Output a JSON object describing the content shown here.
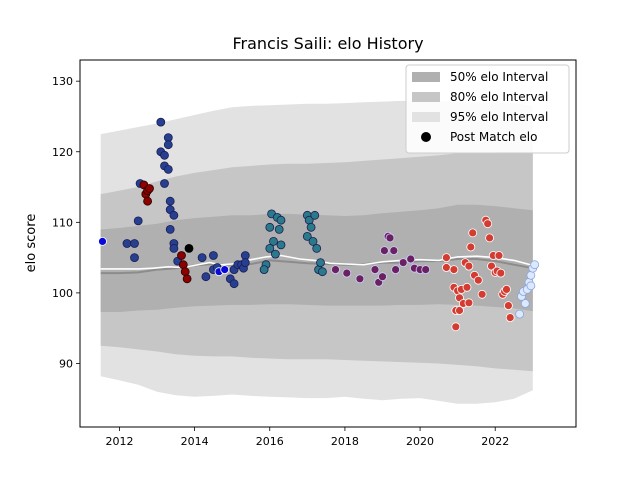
{
  "chart_data": {
    "type": "scatter",
    "title": "Francis Saili: elo History",
    "xlabel": "",
    "ylabel": "elo score",
    "xlim": [
      2010.95,
      2024.15
    ],
    "ylim": [
      81,
      133
    ],
    "x_ticks": [
      2012,
      2014,
      2016,
      2018,
      2020,
      2022
    ],
    "y_ticks": [
      90,
      100,
      110,
      120,
      130
    ],
    "grid": false,
    "legend": {
      "placement": "top-right",
      "entries": [
        {
          "label": "50% elo Interval",
          "color": "#b0b0b0"
        },
        {
          "label": "80% elo Interval",
          "color": "#c6c6c6"
        },
        {
          "label": "95% elo Interval",
          "color": "#e2e2e2"
        },
        {
          "label": "Post Match elo",
          "color": "#000000"
        }
      ]
    },
    "bands": {
      "x": [
        2011.5,
        2012.0,
        2012.5,
        2013.0,
        2013.5,
        2014.0,
        2014.5,
        2015.0,
        2015.5,
        2016.0,
        2016.5,
        2017.0,
        2017.5,
        2018.0,
        2018.5,
        2019.0,
        2019.5,
        2020.0,
        2020.5,
        2021.0,
        2021.5,
        2022.0,
        2022.5,
        2023.0
      ],
      "median": [
        102.8,
        102.8,
        102.9,
        103.3,
        103.5,
        103.9,
        104.1,
        104.0,
        104.1,
        104.6,
        104.4,
        104.2,
        104.1,
        104.0,
        104.1,
        104.3,
        104.3,
        104.5,
        104.5,
        104.8,
        104.8,
        104.5,
        104.0,
        103.5
      ],
      "q50": {
        "lower": [
          97.3,
          97.3,
          97.5,
          97.6,
          97.9,
          98.1,
          98.2,
          98.3,
          98.3,
          98.4,
          98.4,
          98.3,
          98.2,
          98.2,
          98.2,
          98.2,
          98.3,
          98.3,
          98.4,
          98.3,
          98.2,
          98.0,
          97.8,
          97.4
        ],
        "upper": [
          109.0,
          109.2,
          109.5,
          109.8,
          110.3,
          110.6,
          110.8,
          111.0,
          111.0,
          111.2,
          111.2,
          111.1,
          111.0,
          110.9,
          111.0,
          111.3,
          111.5,
          111.7,
          112.0,
          112.5,
          112.5,
          112.3,
          112.0,
          111.7
        ]
      },
      "q80": {
        "lower": [
          92.5,
          92.3,
          92.0,
          91.7,
          91.3,
          91.1,
          91.0,
          91.0,
          90.8,
          90.7,
          90.6,
          90.6,
          90.6,
          90.5,
          90.4,
          90.3,
          90.2,
          90.1,
          90.0,
          89.8,
          89.6,
          89.3,
          89.1,
          88.9
        ],
        "upper": [
          114.0,
          114.5,
          115.0,
          115.8,
          116.5,
          117.0,
          117.4,
          117.8,
          118.0,
          118.2,
          118.3,
          118.3,
          118.4,
          118.5,
          118.7,
          118.9,
          119.1,
          119.3,
          119.5,
          119.8,
          119.9,
          119.9,
          120.0,
          120.0
        ]
      },
      "q95": {
        "lower": [
          88.2,
          87.6,
          87.0,
          86.0,
          85.5,
          85.3,
          85.4,
          85.6,
          85.4,
          85.3,
          85.2,
          85.1,
          85.1,
          85.3,
          85.0,
          84.8,
          85.0,
          85.1,
          84.7,
          84.3,
          84.3,
          84.5,
          85.0,
          86.2
        ],
        "upper": [
          122.5,
          123.0,
          123.5,
          124.0,
          124.6,
          125.2,
          125.8,
          126.3,
          126.5,
          126.6,
          126.7,
          126.8,
          126.8,
          126.9,
          127.0,
          127.1,
          127.2,
          127.2,
          127.2,
          127.1,
          127.0,
          127.0,
          126.9,
          126.5
        ]
      },
      "running_elo": {
        "x": [
          2011.5,
          2012.5,
          2012.9,
          2013.3,
          2013.7,
          2014.0,
          2014.4,
          2014.7,
          2015.0,
          2015.5,
          2015.9,
          2016.3,
          2016.8,
          2017.2,
          2017.6,
          2018.0,
          2018.5,
          2019.0,
          2019.5,
          2020.0,
          2020.5,
          2021.0,
          2021.5,
          2022.0,
          2022.5,
          2023.0
        ],
        "y": [
          103.4,
          103.4,
          103.5,
          103.7,
          103.6,
          103.9,
          104.3,
          104.0,
          104.1,
          104.7,
          105.1,
          105.3,
          104.8,
          104.6,
          104.2,
          104.1,
          104.0,
          104.4,
          104.6,
          104.7,
          104.6,
          105.1,
          105.2,
          105.0,
          104.6,
          103.9
        ]
      }
    },
    "series": [
      {
        "fill": "#0a0ad8",
        "edge": "#ffffff",
        "points": [
          [
            2011.55,
            107.3
          ]
        ]
      },
      {
        "fill": "#26408f",
        "edge": "#1b1b55",
        "points": [
          [
            2012.2,
            107.0
          ],
          [
            2012.4,
            105.0
          ],
          [
            2012.4,
            107.0
          ],
          [
            2012.5,
            110.2
          ],
          [
            2012.55,
            115.5
          ],
          [
            2013.1,
            124.2
          ],
          [
            2013.1,
            120.0
          ],
          [
            2013.2,
            119.5
          ],
          [
            2013.2,
            118.0
          ],
          [
            2013.2,
            115.5
          ],
          [
            2013.3,
            122.0
          ],
          [
            2013.3,
            121.0
          ],
          [
            2013.3,
            117.5
          ],
          [
            2013.35,
            113.0
          ],
          [
            2013.35,
            111.8
          ],
          [
            2013.35,
            109.0
          ],
          [
            2013.45,
            111.0
          ],
          [
            2013.45,
            107.0
          ],
          [
            2013.45,
            106.3
          ],
          [
            2013.55,
            104.5
          ],
          [
            2014.2,
            105.0
          ],
          [
            2014.3,
            102.3
          ],
          [
            2014.5,
            105.3
          ],
          [
            2014.5,
            103.3
          ],
          [
            2014.6,
            103.6
          ],
          [
            2014.95,
            102.0
          ],
          [
            2015.05,
            103.3
          ],
          [
            2015.05,
            101.3
          ],
          [
            2015.15,
            104.0
          ],
          [
            2015.25,
            104.0
          ],
          [
            2015.3,
            103.5
          ],
          [
            2015.35,
            105.3
          ],
          [
            2015.35,
            104.3
          ]
        ]
      },
      {
        "fill": "#8b0000",
        "edge": "#2a0000",
        "points": [
          [
            2012.65,
            115.3
          ],
          [
            2012.7,
            114.0
          ],
          [
            2012.75,
            113.0
          ],
          [
            2012.75,
            114.5
          ],
          [
            2012.8,
            114.8
          ],
          [
            2013.65,
            105.3
          ],
          [
            2013.7,
            104.0
          ],
          [
            2013.75,
            103.0
          ],
          [
            2013.8,
            102.0
          ]
        ]
      },
      {
        "fill": "#000000",
        "edge": "#000000",
        "points": [
          [
            2013.85,
            106.3
          ]
        ]
      },
      {
        "fill": "#0a0ad8",
        "edge": "#ffffff",
        "points": [
          [
            2014.65,
            103.0
          ],
          [
            2014.8,
            103.3
          ]
        ]
      },
      {
        "fill": "#2a7a8a",
        "edge": "#1b1b55",
        "points": [
          [
            2015.9,
            104.0
          ],
          [
            2016.0,
            106.3
          ],
          [
            2016.0,
            109.3
          ],
          [
            2016.05,
            111.2
          ],
          [
            2016.1,
            107.3
          ],
          [
            2016.15,
            105.5
          ],
          [
            2016.2,
            110.7
          ],
          [
            2016.25,
            109.0
          ],
          [
            2016.3,
            110.3
          ],
          [
            2016.3,
            106.8
          ],
          [
            2015.85,
            103.3
          ],
          [
            2017.0,
            111.0
          ],
          [
            2017.0,
            108.0
          ],
          [
            2017.05,
            110.3
          ],
          [
            2017.1,
            109.3
          ],
          [
            2017.15,
            107.3
          ],
          [
            2017.2,
            111.0
          ],
          [
            2017.25,
            106.3
          ],
          [
            2017.3,
            103.3
          ],
          [
            2017.35,
            104.3
          ],
          [
            2017.4,
            103.0
          ]
        ]
      },
      {
        "fill": "#6b2060",
        "edge": "#cfd0ff",
        "points": [
          [
            2017.75,
            103.3
          ],
          [
            2018.05,
            102.8
          ],
          [
            2018.4,
            102.0
          ],
          [
            2018.8,
            103.3
          ],
          [
            2018.9,
            101.5
          ],
          [
            2019.0,
            102.3
          ],
          [
            2019.05,
            106.0
          ],
          [
            2019.15,
            108.0
          ],
          [
            2019.2,
            107.8
          ],
          [
            2019.3,
            106.0
          ],
          [
            2019.35,
            103.3
          ],
          [
            2019.55,
            104.3
          ],
          [
            2019.75,
            104.8
          ],
          [
            2019.85,
            103.5
          ],
          [
            2020.0,
            103.3
          ],
          [
            2020.15,
            103.3
          ]
        ]
      },
      {
        "fill": "#d43c32",
        "edge": "#ffffff",
        "points": [
          [
            2020.7,
            105.0
          ],
          [
            2020.7,
            103.6
          ],
          [
            2020.9,
            103.3
          ],
          [
            2020.9,
            100.8
          ],
          [
            2020.95,
            97.5
          ],
          [
            2020.95,
            95.2
          ],
          [
            2021.0,
            100.3
          ],
          [
            2021.05,
            97.5
          ],
          [
            2021.05,
            99.3
          ],
          [
            2021.1,
            100.5
          ],
          [
            2021.15,
            98.5
          ],
          [
            2021.2,
            104.3
          ],
          [
            2021.25,
            100.8
          ],
          [
            2021.3,
            98.6
          ],
          [
            2021.3,
            103.8
          ],
          [
            2021.35,
            106.5
          ],
          [
            2021.4,
            108.5
          ],
          [
            2021.45,
            102.5
          ],
          [
            2021.65,
            99.8
          ],
          [
            2021.75,
            110.3
          ],
          [
            2021.8,
            109.8
          ],
          [
            2021.85,
            107.8
          ],
          [
            2021.9,
            103.8
          ],
          [
            2021.95,
            105.3
          ],
          [
            2022.0,
            102.9
          ],
          [
            2022.05,
            103.1
          ],
          [
            2022.1,
            105.3
          ],
          [
            2022.15,
            102.8
          ],
          [
            2022.2,
            99.8
          ],
          [
            2022.25,
            100.2
          ],
          [
            2022.3,
            100.5
          ],
          [
            2022.35,
            98.2
          ],
          [
            2022.4,
            96.5
          ],
          [
            2021.55,
            101.8
          ]
        ]
      },
      {
        "fill": "#dce8ff",
        "edge": "#8aa6d8",
        "points": [
          [
            2022.65,
            97.0
          ],
          [
            2022.7,
            99.5
          ],
          [
            2022.75,
            100.2
          ],
          [
            2022.8,
            98.5
          ],
          [
            2022.85,
            100.5
          ],
          [
            2022.9,
            101.5
          ],
          [
            2022.95,
            102.5
          ],
          [
            2023.0,
            103.5
          ],
          [
            2023.05,
            104.0
          ],
          [
            2022.95,
            101.0
          ]
        ]
      }
    ]
  }
}
